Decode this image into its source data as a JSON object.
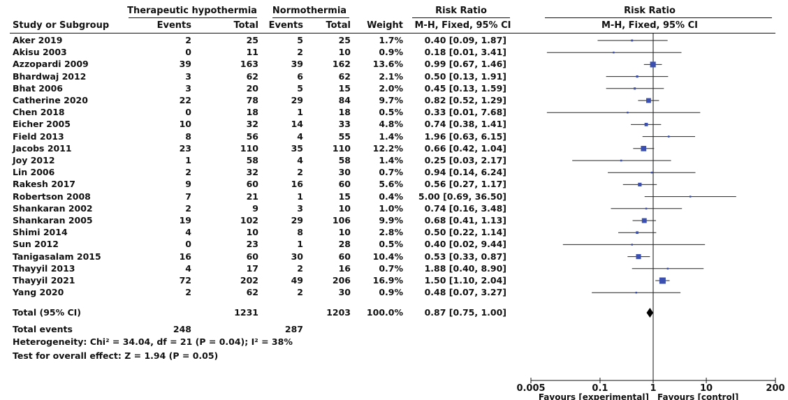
{
  "headers": {
    "group_treat": "Therapeutic hypothermia",
    "group_ctrl": "Normothermia",
    "rr_text": "Risk Ratio",
    "rr_plot": "Risk Ratio",
    "study": "Study or Subgroup",
    "events": "Events",
    "total": "Total",
    "events2": "Events",
    "total2": "Total",
    "weight": "Weight",
    "method": "M-H, Fixed, 95% CI",
    "method_plot": "M-H, Fixed, 95% CI"
  },
  "studies": [
    {
      "name": "Aker 2019",
      "e1": "2",
      "t1": "25",
      "e2": "5",
      "t2": "25",
      "w": "1.7%",
      "ci": "0.40 [0.09, 1.87]"
    },
    {
      "name": "Akisu 2003",
      "e1": "0",
      "t1": "11",
      "e2": "2",
      "t2": "10",
      "w": "0.9%",
      "ci": "0.18 [0.01, 3.41]"
    },
    {
      "name": "Azzopardi 2009",
      "e1": "39",
      "t1": "163",
      "e2": "39",
      "t2": "162",
      "w": "13.6%",
      "ci": "0.99 [0.67, 1.46]"
    },
    {
      "name": "Bhardwaj 2012",
      "e1": "3",
      "t1": "62",
      "e2": "6",
      "t2": "62",
      "w": "2.1%",
      "ci": "0.50 [0.13, 1.91]"
    },
    {
      "name": "Bhat 2006",
      "e1": "3",
      "t1": "20",
      "e2": "5",
      "t2": "15",
      "w": "2.0%",
      "ci": "0.45 [0.13, 1.59]"
    },
    {
      "name": "Catherine 2020",
      "e1": "22",
      "t1": "78",
      "e2": "29",
      "t2": "84",
      "w": "9.7%",
      "ci": "0.82 [0.52, 1.29]"
    },
    {
      "name": "Chen 2018",
      "e1": "0",
      "t1": "18",
      "e2": "1",
      "t2": "18",
      "w": "0.5%",
      "ci": "0.33 [0.01, 7.68]"
    },
    {
      "name": "Eicher 2005",
      "e1": "10",
      "t1": "32",
      "e2": "14",
      "t2": "33",
      "w": "4.8%",
      "ci": "0.74 [0.38, 1.41]"
    },
    {
      "name": "Field 2013",
      "e1": "8",
      "t1": "56",
      "e2": "4",
      "t2": "55",
      "w": "1.4%",
      "ci": "1.96 [0.63, 6.15]"
    },
    {
      "name": "Jacobs 2011",
      "e1": "23",
      "t1": "110",
      "e2": "35",
      "t2": "110",
      "w": "12.2%",
      "ci": "0.66 [0.42, 1.04]"
    },
    {
      "name": "Joy 2012",
      "e1": "1",
      "t1": "58",
      "e2": "4",
      "t2": "58",
      "w": "1.4%",
      "ci": "0.25 [0.03, 2.17]"
    },
    {
      "name": "Lin 2006",
      "e1": "2",
      "t1": "32",
      "e2": "2",
      "t2": "30",
      "w": "0.7%",
      "ci": "0.94 [0.14, 6.24]"
    },
    {
      "name": "Rakesh 2017",
      "e1": "9",
      "t1": "60",
      "e2": "16",
      "t2": "60",
      "w": "5.6%",
      "ci": "0.56 [0.27, 1.17]"
    },
    {
      "name": "Robertson 2008",
      "e1": "7",
      "t1": "21",
      "e2": "1",
      "t2": "15",
      "w": "0.4%",
      "ci": "5.00 [0.69, 36.50]"
    },
    {
      "name": "Shankaran 2002",
      "e1": "2",
      "t1": "9",
      "e2": "3",
      "t2": "10",
      "w": "1.0%",
      "ci": "0.74 [0.16, 3.48]"
    },
    {
      "name": "Shankaran 2005",
      "e1": "19",
      "t1": "102",
      "e2": "29",
      "t2": "106",
      "w": "9.9%",
      "ci": "0.68 [0.41, 1.13]"
    },
    {
      "name": "Shimi 2014",
      "e1": "4",
      "t1": "10",
      "e2": "8",
      "t2": "10",
      "w": "2.8%",
      "ci": "0.50 [0.22, 1.14]"
    },
    {
      "name": "Sun 2012",
      "e1": "0",
      "t1": "23",
      "e2": "1",
      "t2": "28",
      "w": "0.5%",
      "ci": "0.40 [0.02, 9.44]"
    },
    {
      "name": "Tanigasalam 2015",
      "e1": "16",
      "t1": "60",
      "e2": "30",
      "t2": "60",
      "w": "10.4%",
      "ci": "0.53 [0.33, 0.87]"
    },
    {
      "name": "Thayyil 2013",
      "e1": "4",
      "t1": "17",
      "e2": "2",
      "t2": "16",
      "w": "0.7%",
      "ci": "1.88 [0.40, 8.90]"
    },
    {
      "name": "Thayyil 2021",
      "e1": "72",
      "t1": "202",
      "e2": "49",
      "t2": "206",
      "w": "16.9%",
      "ci": "1.50 [1.10, 2.04]"
    },
    {
      "name": "Yang 2020",
      "e1": "2",
      "t1": "62",
      "e2": "2",
      "t2": "30",
      "w": "0.9%",
      "ci": "0.48 [0.07, 3.27]"
    }
  ],
  "total": {
    "name": "Total (95% CI)",
    "t1": "1231",
    "t2": "1203",
    "w": "100.0%",
    "ci": "0.87 [0.75, 1.00]"
  },
  "total_events": {
    "label": "Total events",
    "e1": "248",
    "e2": "287"
  },
  "heterogeneity": "Heterogeneity: Chi² = 34.04, df = 21 (P = 0.04); I² = 38%",
  "overall_effect": "Test for overall effect: Z = 1.94 (P = 0.05)",
  "chart_data": {
    "type": "forest",
    "x_scale": "log",
    "xlim": [
      0.005,
      200
    ],
    "ticks": [
      {
        "v": 0.005,
        "label": "0.005"
      },
      {
        "v": 0.1,
        "label": "0.1"
      },
      {
        "v": 1,
        "label": "1"
      },
      {
        "v": 10,
        "label": "10"
      },
      {
        "v": 200,
        "label": "200"
      }
    ],
    "favours_left": "Favours [experimental]",
    "favours_right": "Favours [control]",
    "points": [
      {
        "rr": 0.4,
        "lo": 0.09,
        "hi": 1.87,
        "w": 1.7
      },
      {
        "rr": 0.18,
        "lo": 0.01,
        "hi": 3.41,
        "w": 0.9
      },
      {
        "rr": 0.99,
        "lo": 0.67,
        "hi": 1.46,
        "w": 13.6
      },
      {
        "rr": 0.5,
        "lo": 0.13,
        "hi": 1.91,
        "w": 2.1
      },
      {
        "rr": 0.45,
        "lo": 0.13,
        "hi": 1.59,
        "w": 2.0
      },
      {
        "rr": 0.82,
        "lo": 0.52,
        "hi": 1.29,
        "w": 9.7
      },
      {
        "rr": 0.33,
        "lo": 0.01,
        "hi": 7.68,
        "w": 0.5
      },
      {
        "rr": 0.74,
        "lo": 0.38,
        "hi": 1.41,
        "w": 4.8
      },
      {
        "rr": 1.96,
        "lo": 0.63,
        "hi": 6.15,
        "w": 1.4
      },
      {
        "rr": 0.66,
        "lo": 0.42,
        "hi": 1.04,
        "w": 12.2
      },
      {
        "rr": 0.25,
        "lo": 0.03,
        "hi": 2.17,
        "w": 1.4
      },
      {
        "rr": 0.94,
        "lo": 0.14,
        "hi": 6.24,
        "w": 0.7
      },
      {
        "rr": 0.56,
        "lo": 0.27,
        "hi": 1.17,
        "w": 5.6
      },
      {
        "rr": 5.0,
        "lo": 0.69,
        "hi": 36.5,
        "w": 0.4
      },
      {
        "rr": 0.74,
        "lo": 0.16,
        "hi": 3.48,
        "w": 1.0
      },
      {
        "rr": 0.68,
        "lo": 0.41,
        "hi": 1.13,
        "w": 9.9
      },
      {
        "rr": 0.5,
        "lo": 0.22,
        "hi": 1.14,
        "w": 2.8
      },
      {
        "rr": 0.4,
        "lo": 0.02,
        "hi": 9.44,
        "w": 0.5
      },
      {
        "rr": 0.53,
        "lo": 0.33,
        "hi": 0.87,
        "w": 10.4
      },
      {
        "rr": 1.88,
        "lo": 0.4,
        "hi": 8.9,
        "w": 0.7
      },
      {
        "rr": 1.5,
        "lo": 1.1,
        "hi": 2.04,
        "w": 16.9
      },
      {
        "rr": 0.48,
        "lo": 0.07,
        "hi": 3.27,
        "w": 0.9
      }
    ],
    "overall": {
      "rr": 0.87,
      "lo": 0.75,
      "hi": 1.0
    },
    "colors": {
      "square": "#3a4fb0",
      "line": "#222222",
      "diamond": "#000000"
    }
  }
}
